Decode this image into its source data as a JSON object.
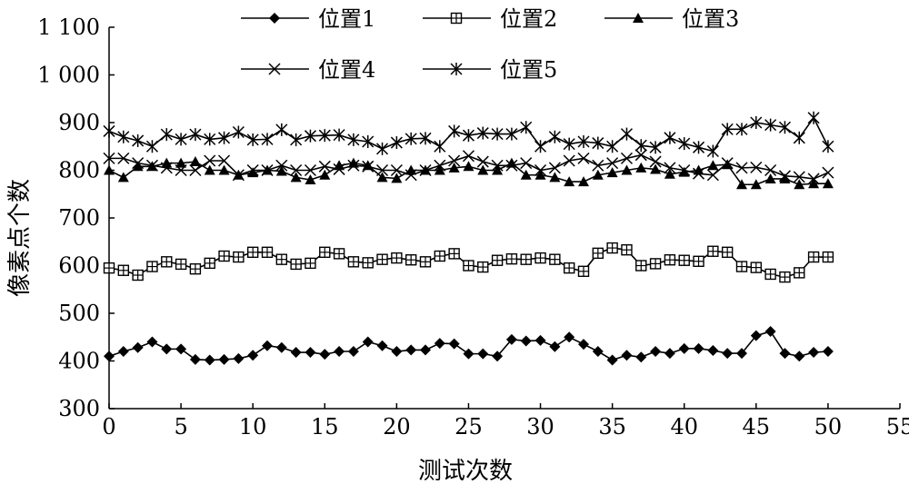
{
  "chart_data": {
    "type": "line",
    "title": "",
    "xlabel": "测试次数",
    "ylabel": "像素点个数",
    "xlim": [
      0,
      55
    ],
    "ylim": [
      300,
      1100
    ],
    "xticks": [
      0,
      5,
      10,
      15,
      20,
      25,
      30,
      35,
      40,
      45,
      50,
      55
    ],
    "yticks": [
      300,
      400,
      500,
      600,
      700,
      800,
      900,
      1000,
      1100
    ],
    "xtick_labels": [
      "0",
      "5",
      "10",
      "15",
      "20",
      "25",
      "30",
      "35",
      "40",
      "45",
      "50",
      "55"
    ],
    "ytick_labels": [
      "300",
      "400",
      "500",
      "600",
      "700",
      "800",
      "900",
      "1 000",
      "1 100"
    ],
    "grid": false,
    "legend_position": "top",
    "x": [
      0,
      1,
      2,
      3,
      4,
      5,
      6,
      7,
      8,
      9,
      10,
      11,
      12,
      13,
      14,
      15,
      16,
      17,
      18,
      19,
      20,
      21,
      22,
      23,
      24,
      25,
      26,
      27,
      28,
      29,
      30,
      31,
      32,
      33,
      34,
      35,
      36,
      37,
      38,
      39,
      40,
      41,
      42,
      43,
      44,
      45,
      46,
      47,
      48,
      49,
      50
    ],
    "series": [
      {
        "name": "位置1",
        "marker": "diamond",
        "values": [
          410,
          420,
          428,
          440,
          425,
          425,
          403,
          402,
          403,
          405,
          412,
          432,
          428,
          418,
          418,
          414,
          420,
          420,
          440,
          432,
          420,
          423,
          423,
          437,
          436,
          415,
          415,
          410,
          445,
          442,
          443,
          430,
          450,
          435,
          420,
          402,
          412,
          408,
          420,
          416,
          426,
          426,
          422,
          416,
          416,
          453,
          462,
          416,
          410,
          418,
          420
        ]
      },
      {
        "name": "位置2",
        "marker": "square-plus",
        "values": [
          595,
          590,
          580,
          598,
          608,
          603,
          593,
          605,
          620,
          618,
          628,
          628,
          613,
          603,
          605,
          628,
          625,
          608,
          606,
          613,
          616,
          612,
          608,
          620,
          625,
          600,
          597,
          611,
          614,
          613,
          616,
          613,
          595,
          588,
          626,
          637,
          633,
          600,
          604,
          612,
          611,
          609,
          630,
          628,
          598,
          596,
          582,
          576,
          585,
          618,
          618
        ]
      },
      {
        "name": "位置3",
        "marker": "triangle",
        "values": [
          800,
          785,
          808,
          808,
          815,
          815,
          818,
          800,
          800,
          790,
          795,
          800,
          798,
          785,
          780,
          790,
          810,
          815,
          810,
          785,
          783,
          800,
          800,
          800,
          805,
          808,
          800,
          800,
          815,
          790,
          790,
          785,
          776,
          776,
          790,
          795,
          800,
          805,
          802,
          792,
          796,
          800,
          810,
          812,
          770,
          770,
          782,
          782,
          770,
          772,
          772
        ]
      },
      {
        "name": "位置4",
        "marker": "x",
        "values": [
          825,
          825,
          815,
          810,
          805,
          800,
          800,
          820,
          820,
          790,
          800,
          800,
          810,
          800,
          800,
          808,
          802,
          810,
          808,
          800,
          800,
          790,
          800,
          810,
          820,
          830,
          818,
          810,
          810,
          815,
          800,
          805,
          820,
          825,
          810,
          815,
          825,
          832,
          818,
          805,
          800,
          793,
          790,
          815,
          805,
          806,
          800,
          788,
          786,
          782,
          795
        ]
      },
      {
        "name": "位置5",
        "marker": "asterisk",
        "values": [
          882,
          870,
          862,
          850,
          875,
          865,
          875,
          865,
          868,
          880,
          864,
          865,
          885,
          864,
          872,
          873,
          874,
          864,
          860,
          845,
          858,
          866,
          867,
          850,
          882,
          873,
          878,
          876,
          876,
          890,
          850,
          870,
          855,
          860,
          857,
          850,
          876,
          852,
          848,
          868,
          856,
          848,
          840,
          886,
          886,
          900,
          895,
          890,
          868,
          910,
          850
        ]
      }
    ]
  }
}
